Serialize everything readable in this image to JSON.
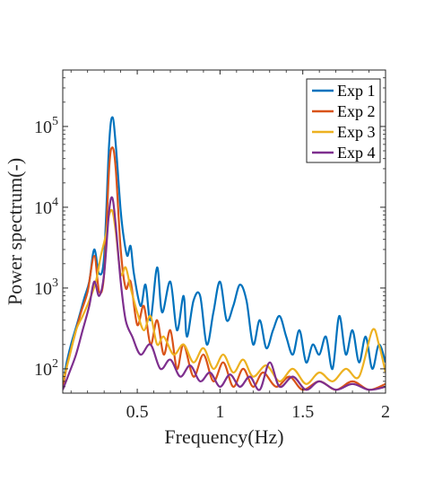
{
  "chart_data": {
    "type": "line",
    "xlabel": "Frequency(Hz)",
    "ylabel": "Power spectrum(-)",
    "xlim": [
      0.05,
      2.0
    ],
    "ylim": [
      50,
      500000
    ],
    "yscale": "log",
    "grid": false,
    "legend_placement": "top-right",
    "x_ticks": [
      {
        "value": 0.5,
        "label": "0.5"
      },
      {
        "value": 1.0,
        "label": "1"
      },
      {
        "value": 1.5,
        "label": "1.5"
      },
      {
        "value": 2.0,
        "label": "2"
      }
    ],
    "y_ticks": [
      {
        "value": 100,
        "base": "10",
        "exp": "2"
      },
      {
        "value": 1000,
        "base": "10",
        "exp": "3"
      },
      {
        "value": 10000,
        "base": "10",
        "exp": "4"
      },
      {
        "value": 100000,
        "base": "10",
        "exp": "5"
      }
    ],
    "series": [
      {
        "name": "Exp 1",
        "color": "#0072BD",
        "points": [
          [
            0.05,
            60
          ],
          [
            0.07,
            110
          ],
          [
            0.1,
            200
          ],
          [
            0.14,
            380
          ],
          [
            0.18,
            750
          ],
          [
            0.21,
            1200
          ],
          [
            0.24,
            3000
          ],
          [
            0.27,
            1500
          ],
          [
            0.3,
            2500
          ],
          [
            0.33,
            60000
          ],
          [
            0.35,
            130000
          ],
          [
            0.37,
            60000
          ],
          [
            0.4,
            9000
          ],
          [
            0.42,
            4000
          ],
          [
            0.44,
            2500
          ],
          [
            0.46,
            3300
          ],
          [
            0.48,
            1500
          ],
          [
            0.52,
            600
          ],
          [
            0.55,
            1100
          ],
          [
            0.58,
            400
          ],
          [
            0.62,
            1800
          ],
          [
            0.65,
            500
          ],
          [
            0.7,
            1200
          ],
          [
            0.74,
            300
          ],
          [
            0.78,
            800
          ],
          [
            0.8,
            250
          ],
          [
            0.84,
            700
          ],
          [
            0.88,
            800
          ],
          [
            0.92,
            200
          ],
          [
            0.96,
            500
          ],
          [
            1.0,
            1200
          ],
          [
            1.04,
            400
          ],
          [
            1.08,
            600
          ],
          [
            1.12,
            1100
          ],
          [
            1.16,
            700
          ],
          [
            1.2,
            200
          ],
          [
            1.24,
            400
          ],
          [
            1.28,
            180
          ],
          [
            1.32,
            300
          ],
          [
            1.36,
            450
          ],
          [
            1.4,
            250
          ],
          [
            1.44,
            150
          ],
          [
            1.48,
            300
          ],
          [
            1.52,
            120
          ],
          [
            1.56,
            200
          ],
          [
            1.6,
            150
          ],
          [
            1.64,
            250
          ],
          [
            1.68,
            100
          ],
          [
            1.72,
            450
          ],
          [
            1.76,
            150
          ],
          [
            1.8,
            300
          ],
          [
            1.84,
            120
          ],
          [
            1.88,
            250
          ],
          [
            1.92,
            100
          ],
          [
            1.96,
            200
          ],
          [
            2.0,
            120
          ]
        ]
      },
      {
        "name": "Exp 2",
        "color": "#D95319",
        "points": [
          [
            0.05,
            60
          ],
          [
            0.08,
            120
          ],
          [
            0.12,
            250
          ],
          [
            0.16,
            500
          ],
          [
            0.2,
            900
          ],
          [
            0.24,
            2500
          ],
          [
            0.27,
            900
          ],
          [
            0.3,
            1500
          ],
          [
            0.33,
            30000
          ],
          [
            0.35,
            55000
          ],
          [
            0.37,
            30000
          ],
          [
            0.4,
            3000
          ],
          [
            0.43,
            1000
          ],
          [
            0.46,
            1200
          ],
          [
            0.5,
            350
          ],
          [
            0.54,
            600
          ],
          [
            0.58,
            200
          ],
          [
            0.62,
            400
          ],
          [
            0.66,
            150
          ],
          [
            0.7,
            300
          ],
          [
            0.74,
            100
          ],
          [
            0.78,
            200
          ],
          [
            0.84,
            80
          ],
          [
            0.9,
            150
          ],
          [
            0.96,
            70
          ],
          [
            1.02,
            120
          ],
          [
            1.08,
            60
          ],
          [
            1.14,
            100
          ],
          [
            1.2,
            60
          ],
          [
            1.26,
            90
          ],
          [
            1.34,
            60
          ],
          [
            1.42,
            80
          ],
          [
            1.5,
            55
          ],
          [
            1.6,
            70
          ],
          [
            1.7,
            55
          ],
          [
            1.8,
            70
          ],
          [
            1.9,
            55
          ],
          [
            2.0,
            65
          ]
        ]
      },
      {
        "name": "Exp 3",
        "color": "#EDB120",
        "points": [
          [
            0.05,
            70
          ],
          [
            0.09,
            140
          ],
          [
            0.13,
            300
          ],
          [
            0.17,
            450
          ],
          [
            0.21,
            700
          ],
          [
            0.25,
            1200
          ],
          [
            0.28,
            2500
          ],
          [
            0.31,
            4500
          ],
          [
            0.33,
            8000
          ],
          [
            0.35,
            9000
          ],
          [
            0.37,
            5000
          ],
          [
            0.4,
            1500
          ],
          [
            0.43,
            1800
          ],
          [
            0.46,
            1000
          ],
          [
            0.5,
            500
          ],
          [
            0.54,
            300
          ],
          [
            0.58,
            450
          ],
          [
            0.62,
            200
          ],
          [
            0.66,
            250
          ],
          [
            0.72,
            150
          ],
          [
            0.78,
            200
          ],
          [
            0.84,
            120
          ],
          [
            0.9,
            180
          ],
          [
            0.96,
            100
          ],
          [
            1.02,
            150
          ],
          [
            1.08,
            90
          ],
          [
            1.14,
            130
          ],
          [
            1.2,
            80
          ],
          [
            1.28,
            110
          ],
          [
            1.36,
            70
          ],
          [
            1.44,
            100
          ],
          [
            1.52,
            65
          ],
          [
            1.6,
            90
          ],
          [
            1.68,
            70
          ],
          [
            1.76,
            100
          ],
          [
            1.84,
            80
          ],
          [
            1.92,
            300
          ],
          [
            1.96,
            200
          ],
          [
            2.0,
            90
          ]
        ]
      },
      {
        "name": "Exp 4",
        "color": "#7E2F8E",
        "points": [
          [
            0.05,
            55
          ],
          [
            0.09,
            90
          ],
          [
            0.13,
            150
          ],
          [
            0.17,
            300
          ],
          [
            0.21,
            600
          ],
          [
            0.24,
            1200
          ],
          [
            0.27,
            800
          ],
          [
            0.3,
            1500
          ],
          [
            0.33,
            9000
          ],
          [
            0.35,
            13000
          ],
          [
            0.37,
            6000
          ],
          [
            0.4,
            1200
          ],
          [
            0.43,
            400
          ],
          [
            0.47,
            250
          ],
          [
            0.52,
            150
          ],
          [
            0.58,
            200
          ],
          [
            0.64,
            100
          ],
          [
            0.7,
            130
          ],
          [
            0.76,
            80
          ],
          [
            0.82,
            110
          ],
          [
            0.88,
            70
          ],
          [
            0.94,
            90
          ],
          [
            1.0,
            60
          ],
          [
            1.06,
            85
          ],
          [
            1.12,
            60
          ],
          [
            1.18,
            80
          ],
          [
            1.24,
            55
          ],
          [
            1.3,
            120
          ],
          [
            1.36,
            60
          ],
          [
            1.44,
            80
          ],
          [
            1.52,
            55
          ],
          [
            1.6,
            70
          ],
          [
            1.7,
            55
          ],
          [
            1.8,
            65
          ],
          [
            1.9,
            55
          ],
          [
            2.0,
            60
          ]
        ]
      }
    ]
  }
}
